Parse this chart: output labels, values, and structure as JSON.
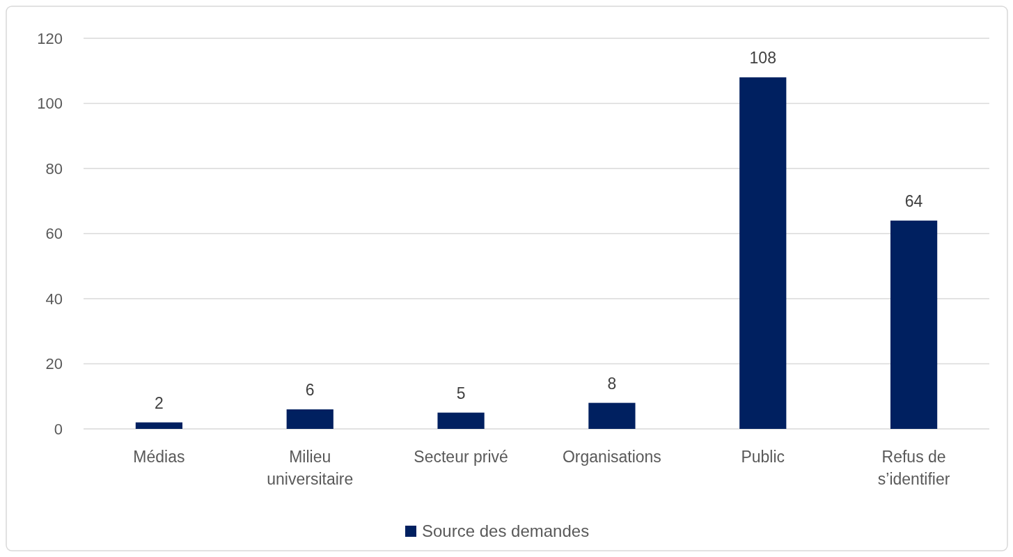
{
  "chart_data": {
    "type": "bar",
    "categories": [
      "Médias",
      "Milieu universitaire",
      "Secteur privé",
      "Organisations",
      "Public",
      "Refus de s’identifier"
    ],
    "series": [
      {
        "name": "Source des demandes",
        "color": "#002060",
        "values": [
          2,
          6,
          5,
          8,
          108,
          64
        ]
      }
    ],
    "ylim": [
      0,
      120
    ],
    "yticks": [
      0,
      20,
      40,
      60,
      80,
      100,
      120
    ],
    "grid": "y",
    "legend": "bottom",
    "data_labels": true
  }
}
